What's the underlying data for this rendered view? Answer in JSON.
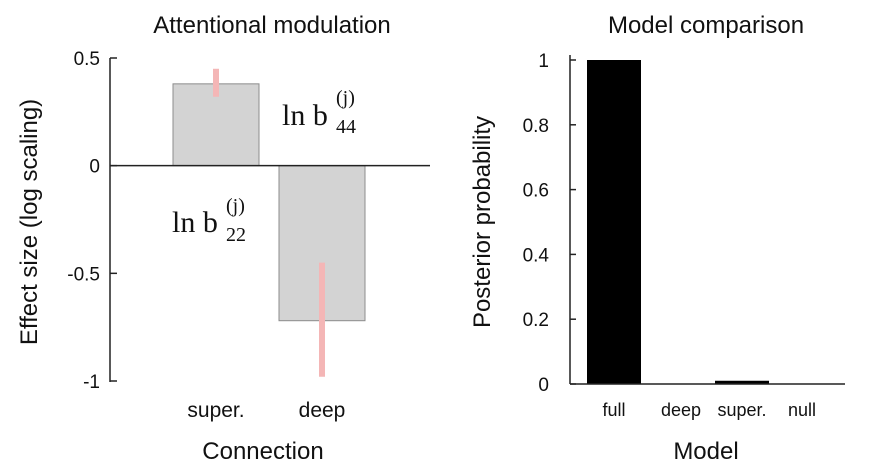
{
  "chart_data": [
    {
      "type": "bar",
      "title": "Attentional modulation",
      "xlabel": "Connection",
      "ylabel": "Effect size (log scaling)",
      "categories": [
        "super.",
        "deep"
      ],
      "values": [
        0.38,
        -0.72
      ],
      "error_intervals": [
        [
          0.32,
          0.45
        ],
        [
          -0.98,
          -0.45
        ]
      ],
      "ylim": [
        -1,
        0.5
      ],
      "yticks": [
        "0.5",
        "0",
        "-0.5",
        "-1"
      ],
      "annotations": [
        {
          "text": "ln b",
          "subscript": "44",
          "superscript": "(j)"
        },
        {
          "text": "ln b",
          "subscript": "22",
          "superscript": "(j)"
        }
      ],
      "colors": {
        "bar": "#d3d3d3",
        "bar_edge": "#8c8c8c",
        "error": "#f4b6b6",
        "axis": "#222222"
      }
    },
    {
      "type": "bar",
      "title": "Model comparison",
      "xlabel": "Model",
      "ylabel": "Posterior probability",
      "categories": [
        "full",
        "deep",
        "super.",
        "null"
      ],
      "values": [
        1.0,
        0.0,
        0.01,
        0.0
      ],
      "ylim": [
        0,
        1
      ],
      "yticks": [
        "1",
        "0.8",
        "0.6",
        "0.4",
        "0.2",
        "0"
      ],
      "colors": {
        "bar": "#000000",
        "axis": "#222222"
      }
    }
  ]
}
